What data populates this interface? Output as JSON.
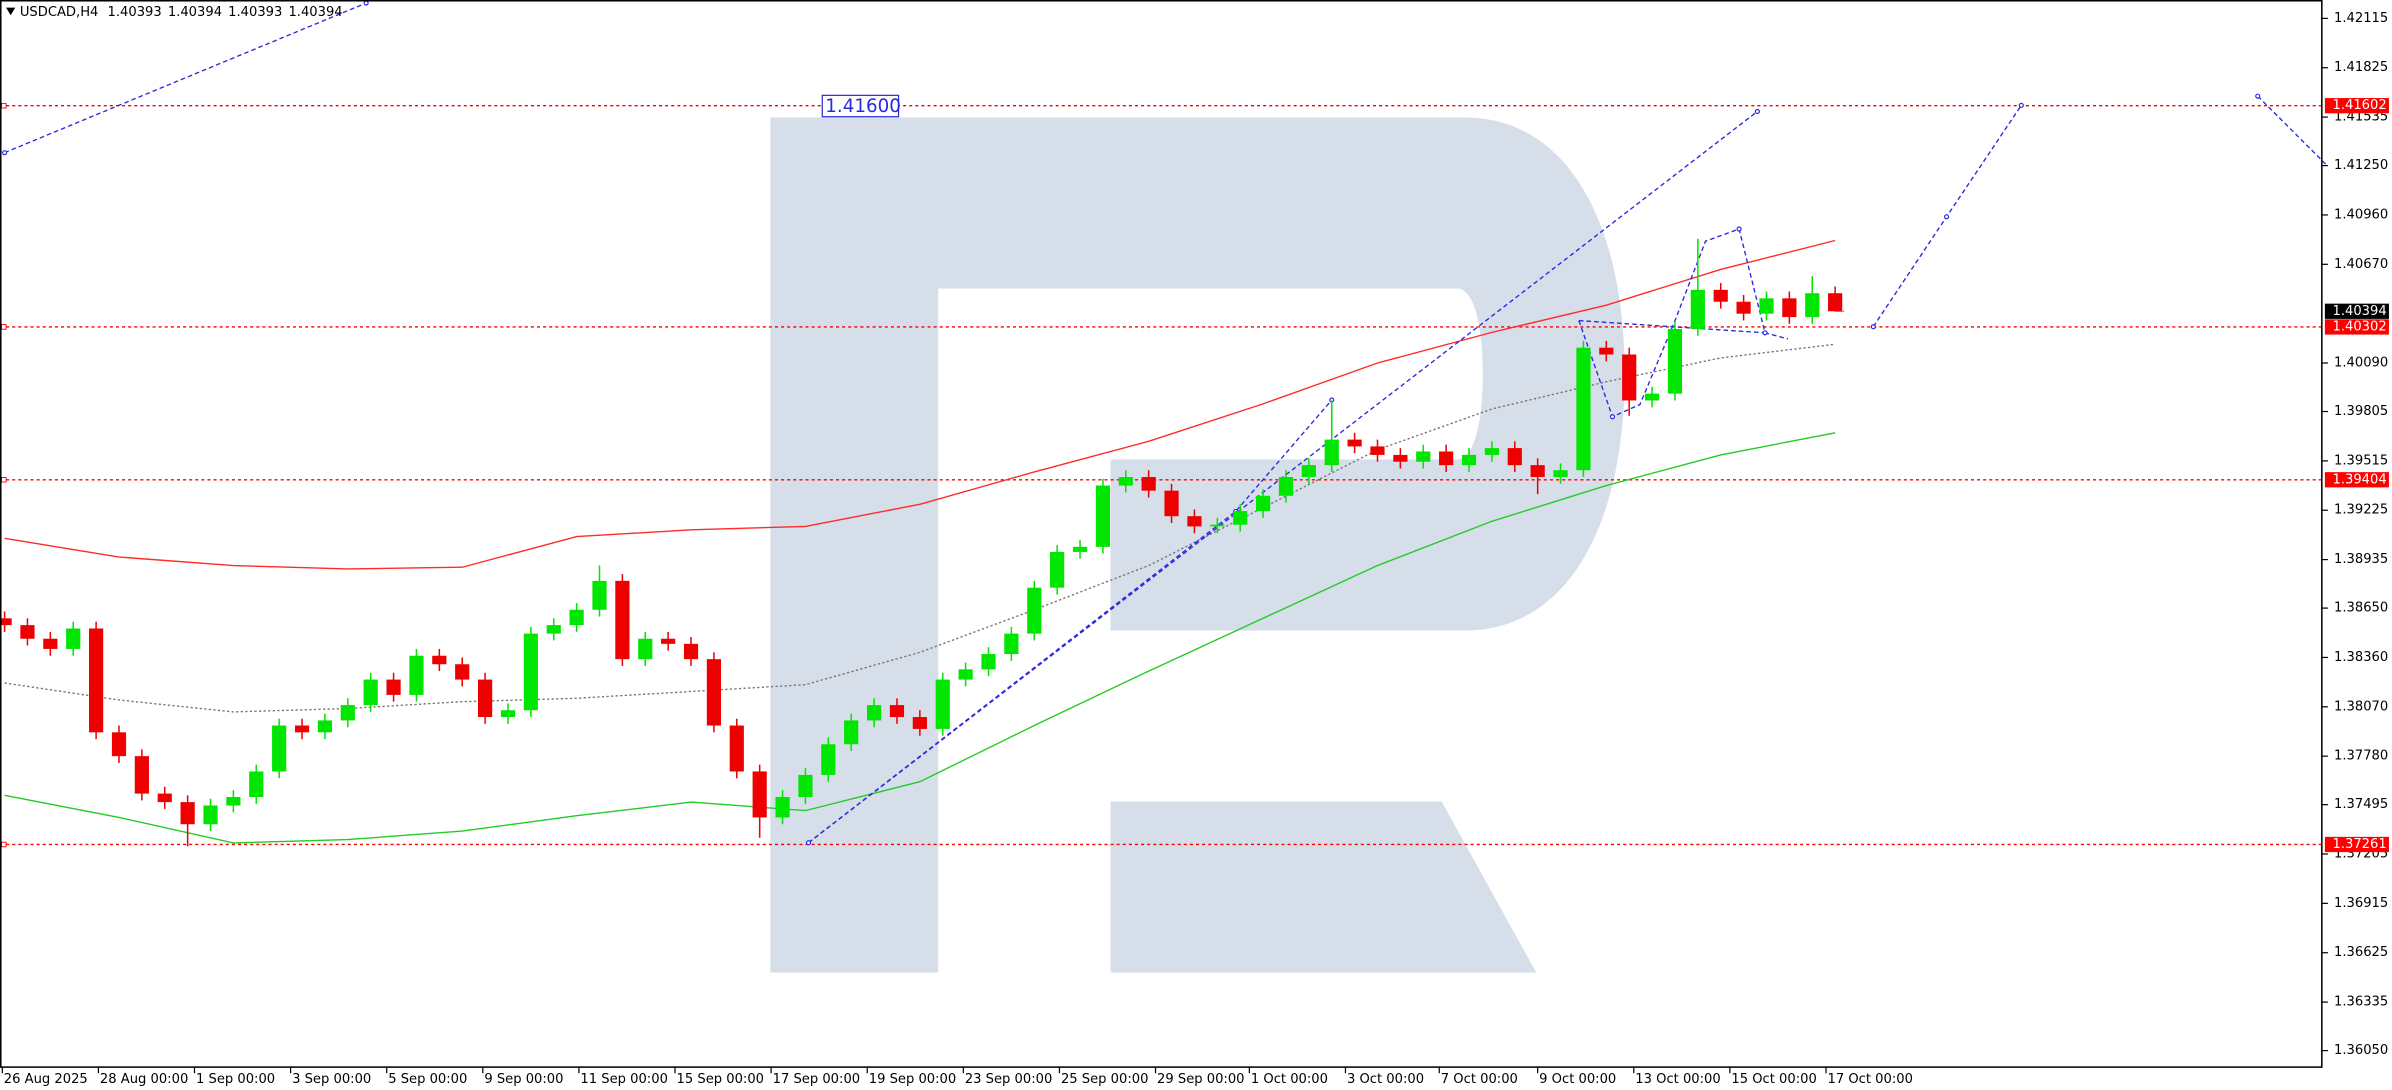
{
  "chart_data": {
    "type": "candlestick",
    "title": "USDCAD,H4",
    "header_values": [
      1.40393,
      1.40394,
      1.40393,
      1.40394
    ],
    "x": [
      0,
      1,
      2,
      3,
      4,
      5,
      6,
      7,
      8,
      9,
      10,
      11,
      12,
      13,
      14,
      15,
      16,
      17,
      18,
      19,
      20,
      21,
      22,
      23,
      24,
      25,
      26,
      27,
      28,
      29,
      30,
      31,
      32,
      33,
      34,
      35,
      36,
      37,
      38,
      39,
      40,
      41,
      42,
      43,
      44,
      45,
      46,
      47,
      48,
      49,
      50,
      51,
      52,
      53,
      54,
      55,
      56,
      57,
      58,
      59,
      60,
      61,
      62,
      63,
      64,
      65,
      66,
      67,
      68,
      69,
      70,
      71,
      72,
      73,
      74,
      75,
      76,
      77,
      78,
      79,
      80
    ],
    "open": [
      1.3859,
      1.3855,
      1.3847,
      1.3841,
      1.3853,
      1.3792,
      1.3778,
      1.3756,
      1.3751,
      1.3738,
      1.3749,
      1.3754,
      1.3769,
      1.3796,
      1.3792,
      1.3799,
      1.3808,
      1.3823,
      1.3814,
      1.3837,
      1.3832,
      1.3823,
      1.3801,
      1.3805,
      1.385,
      1.3855,
      1.3864,
      1.3881,
      1.3835,
      1.3847,
      1.3844,
      1.3835,
      1.3796,
      1.3769,
      1.3742,
      1.3754,
      1.3767,
      1.3785,
      1.3799,
      1.3808,
      1.3801,
      1.3794,
      1.3823,
      1.3829,
      1.3838,
      1.385,
      1.3877,
      1.3898,
      1.3901,
      1.3937,
      1.3942,
      1.3934,
      1.3919,
      1.3913,
      1.3914,
      1.3922,
      1.3931,
      1.3942,
      1.3949,
      1.3964,
      1.396,
      1.3955,
      1.3951,
      1.3957,
      1.3949,
      1.3955,
      1.3959,
      1.3949,
      1.3942,
      1.3946,
      1.4018,
      1.4014,
      1.3987,
      1.3991,
      1.4029,
      1.4052,
      1.4045,
      1.4038,
      1.4047,
      1.4036,
      1.405
    ],
    "high": [
      1.3863,
      1.3859,
      1.3851,
      1.3857,
      1.3857,
      1.3796,
      1.3782,
      1.376,
      1.3755,
      1.3753,
      1.3758,
      1.3773,
      1.38,
      1.38,
      1.3803,
      1.3812,
      1.3827,
      1.3827,
      1.3841,
      1.3841,
      1.3836,
      1.3827,
      1.3809,
      1.3854,
      1.3859,
      1.3868,
      1.389,
      1.3885,
      1.3851,
      1.3851,
      1.3848,
      1.3839,
      1.38,
      1.3773,
      1.3758,
      1.3771,
      1.3789,
      1.3803,
      1.3812,
      1.3812,
      1.3805,
      1.3827,
      1.3833,
      1.3842,
      1.3854,
      1.3881,
      1.3902,
      1.3905,
      1.3941,
      1.3946,
      1.3946,
      1.3938,
      1.3923,
      1.3918,
      1.3926,
      1.3935,
      1.3946,
      1.3953,
      1.3987,
      1.3968,
      1.3964,
      1.3959,
      1.3961,
      1.3961,
      1.3959,
      1.3963,
      1.3963,
      1.3953,
      1.395,
      1.4022,
      1.4022,
      1.4018,
      1.3995,
      1.4033,
      1.4082,
      1.4056,
      1.4049,
      1.4051,
      1.4051,
      1.406,
      1.4054
    ],
    "low": [
      1.3851,
      1.3843,
      1.3837,
      1.3837,
      1.3788,
      1.3774,
      1.3752,
      1.3747,
      1.3725,
      1.3734,
      1.3745,
      1.375,
      1.3765,
      1.3788,
      1.3788,
      1.3795,
      1.3804,
      1.381,
      1.381,
      1.3828,
      1.3819,
      1.3797,
      1.3797,
      1.3801,
      1.3846,
      1.3851,
      1.386,
      1.3831,
      1.3831,
      1.384,
      1.3831,
      1.3792,
      1.3765,
      1.373,
      1.3738,
      1.375,
      1.3763,
      1.3781,
      1.3795,
      1.3797,
      1.379,
      1.379,
      1.3819,
      1.3825,
      1.3834,
      1.3846,
      1.3873,
      1.3894,
      1.3897,
      1.3933,
      1.393,
      1.3915,
      1.3909,
      1.3909,
      1.391,
      1.3918,
      1.3927,
      1.3938,
      1.3945,
      1.3956,
      1.3951,
      1.3947,
      1.3947,
      1.3945,
      1.3945,
      1.3951,
      1.3945,
      1.3932,
      1.3938,
      1.3942,
      1.401,
      1.3978,
      1.3983,
      1.3987,
      1.4025,
      1.4041,
      1.4034,
      1.4034,
      1.4032,
      1.4032,
      1.40393
    ],
    "close": [
      1.3855,
      1.3847,
      1.3841,
      1.3853,
      1.3792,
      1.3778,
      1.3756,
      1.3751,
      1.3738,
      1.3749,
      1.3754,
      1.3769,
      1.3796,
      1.3792,
      1.3799,
      1.3808,
      1.3823,
      1.3814,
      1.3837,
      1.3832,
      1.3823,
      1.3801,
      1.3805,
      1.385,
      1.3855,
      1.3864,
      1.3881,
      1.3835,
      1.3847,
      1.3844,
      1.3835,
      1.3796,
      1.3769,
      1.3742,
      1.3754,
      1.3767,
      1.3785,
      1.3799,
      1.3808,
      1.3801,
      1.3794,
      1.3823,
      1.3829,
      1.3838,
      1.385,
      1.3877,
      1.3898,
      1.3901,
      1.3937,
      1.3942,
      1.3934,
      1.3919,
      1.3913,
      1.3914,
      1.3922,
      1.3931,
      1.3942,
      1.3949,
      1.3964,
      1.396,
      1.3955,
      1.3951,
      1.3957,
      1.3949,
      1.3955,
      1.3959,
      1.3949,
      1.3942,
      1.3946,
      1.4018,
      1.4014,
      1.3987,
      1.3991,
      1.4029,
      1.4052,
      1.4045,
      1.4038,
      1.4047,
      1.4036,
      1.405,
      1.40394
    ],
    "up_color": "#00e600",
    "down_color": "#ee0000",
    "overlays": [
      {
        "color": "#ff2a2a",
        "dash": false,
        "x": [
          0,
          5,
          10,
          15,
          20,
          25,
          30,
          35,
          40,
          45,
          50,
          55,
          60,
          65,
          70,
          75,
          80
        ],
        "values": [
          1.3906,
          1.3895,
          1.389,
          1.3888,
          1.3889,
          1.3907,
          1.3911,
          1.3913,
          1.3926,
          1.3945,
          1.3963,
          1.3985,
          1.4009,
          1.4027,
          1.4043,
          1.4064,
          1.4081
        ]
      },
      {
        "color": "#777777",
        "dash": true,
        "x": [
          0,
          5,
          10,
          15,
          20,
          25,
          30,
          35,
          40,
          45,
          50,
          55,
          60,
          65,
          70,
          75,
          80
        ],
        "values": [
          1.3821,
          1.3811,
          1.3804,
          1.3806,
          1.381,
          1.3812,
          1.3816,
          1.382,
          1.3839,
          1.3864,
          1.389,
          1.3924,
          1.3958,
          1.3982,
          1.3998,
          1.4012,
          1.402
        ]
      },
      {
        "color": "#22cc22",
        "dash": false,
        "x": [
          0,
          5,
          10,
          15,
          20,
          25,
          30,
          35,
          40,
          45,
          50,
          55,
          60,
          65,
          70,
          75,
          80
        ],
        "values": [
          1.3755,
          1.3742,
          1.3727,
          1.3729,
          1.3734,
          1.3743,
          1.3751,
          1.3746,
          1.3763,
          1.3796,
          1.3828,
          1.3859,
          1.389,
          1.3916,
          1.3937,
          1.3955,
          1.3968
        ]
      }
    ],
    "xlim": [
      -0.2,
      101.27
    ],
    "ylim": [
      1.35944,
      1.42223
    ],
    "xticks": [
      {
        "value": -0.1,
        "label": "26 Aug 2025"
      },
      {
        "value": 4.1,
        "label": "28 Aug 00:00"
      },
      {
        "value": 8.3,
        "label": "1 Sep 00:00"
      },
      {
        "value": 12.5,
        "label": "3 Sep 00:00"
      },
      {
        "value": 16.7,
        "label": "5 Sep 00:00"
      },
      {
        "value": 20.9,
        "label": "9 Sep 00:00"
      },
      {
        "value": 25.1,
        "label": "11 Sep 00:00"
      },
      {
        "value": 29.3,
        "label": "15 Sep 00:00"
      },
      {
        "value": 33.5,
        "label": "17 Sep 00:00"
      },
      {
        "value": 37.7,
        "label": "19 Sep 00:00"
      },
      {
        "value": 41.9,
        "label": "23 Sep 00:00"
      },
      {
        "value": 46.1,
        "label": "25 Sep 00:00"
      },
      {
        "value": 50.3,
        "label": "29 Sep 00:00"
      },
      {
        "value": 54.4,
        "label": "1 Oct 00:00"
      },
      {
        "value": 58.6,
        "label": "3 Oct 00:00"
      },
      {
        "value": 62.7,
        "label": "7 Oct 00:00"
      },
      {
        "value": 67.0,
        "label": "9 Oct 00:00"
      },
      {
        "value": 71.2,
        "label": "13 Oct 00:00"
      },
      {
        "value": 75.4,
        "label": "15 Oct 00:00"
      },
      {
        "value": 79.6,
        "label": "17 Oct 00:00"
      }
    ],
    "yticks": [
      1.42115,
      1.41825,
      1.41535,
      {
        "value": 1.4125,
        "label": "1.41250"
      },
      {
        "value": 1.4096,
        "label": "1.40960"
      },
      {
        "value": 1.4067,
        "label": "1.40670"
      },
      {
        "value": 1.4009,
        "label": "1.40090"
      },
      1.39805,
      1.39515,
      1.39225,
      1.38935,
      {
        "value": 1.3865,
        "label": "1.38650"
      },
      {
        "value": 1.3836,
        "label": "1.38360"
      },
      {
        "value": 1.3807,
        "label": "1.38070"
      },
      {
        "value": 1.3778,
        "label": "1.37780"
      },
      1.37495,
      1.37205,
      1.36915,
      1.36625,
      1.36335,
      {
        "value": 1.3605,
        "label": "1.36050"
      }
    ],
    "price_levels": [
      1.41602,
      1.40302,
      1.39404,
      1.37261
    ],
    "level_color": "#ff0000",
    "current_price": 1.40394,
    "annotation": "1.41600",
    "grid": false
  }
}
